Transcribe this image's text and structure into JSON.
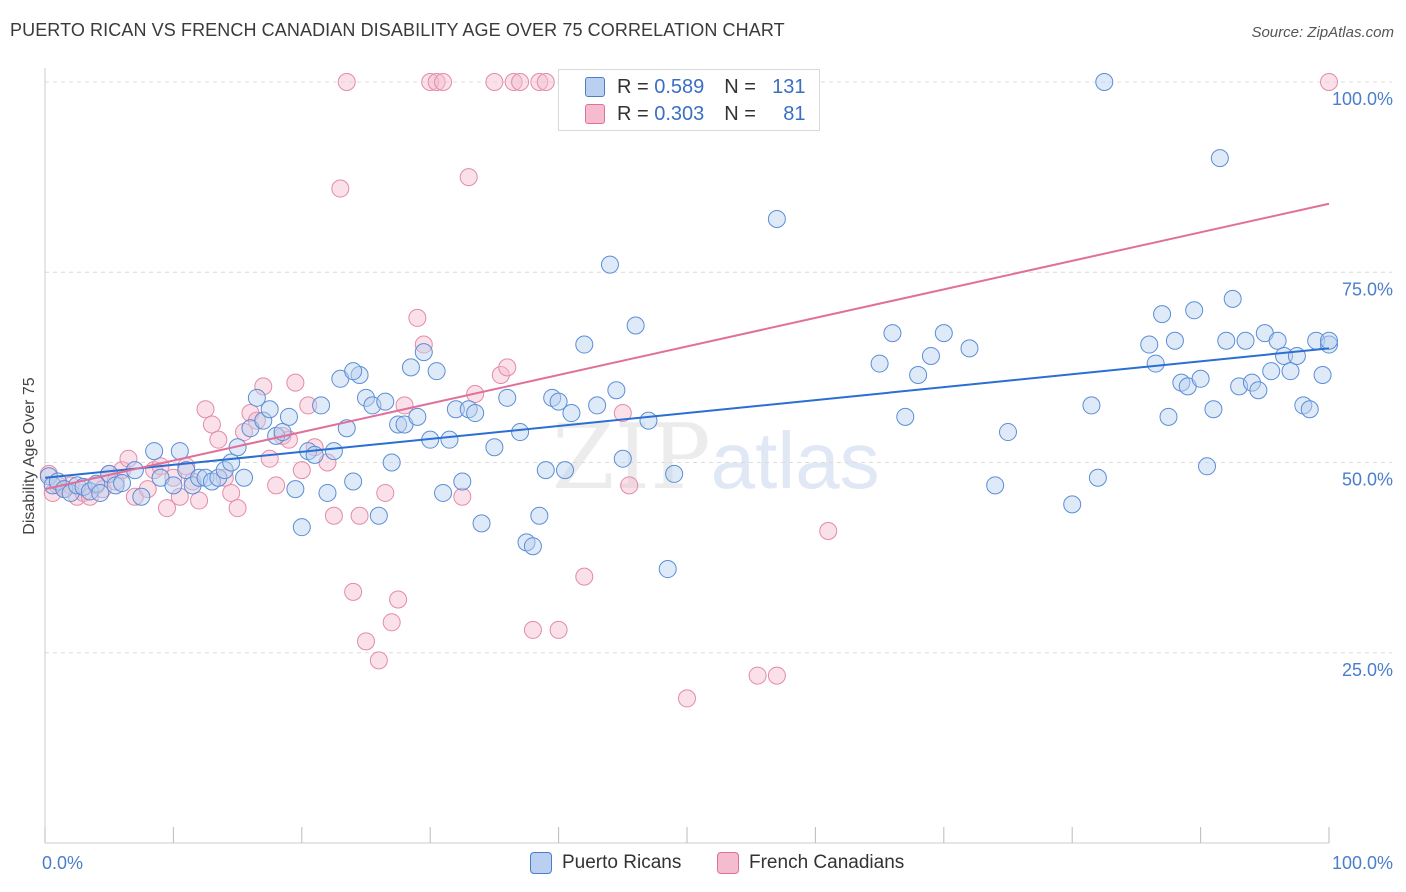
{
  "title": "PUERTO RICAN VS FRENCH CANADIAN DISABILITY AGE OVER 75 CORRELATION CHART",
  "source": "Source: ZipAtlas.com",
  "watermark": {
    "zip": "ZIP",
    "atlas": "atlas"
  },
  "legend": {
    "rows": [
      {
        "r_label": "R =",
        "r_value": "0.589",
        "n_label": "N =",
        "n_value": "131"
      },
      {
        "r_label": "R =",
        "r_value": "0.303",
        "n_label": "N =",
        "n_value": "81"
      }
    ]
  },
  "bottom_legend": [
    "Puerto Ricans",
    "French Canadians"
  ],
  "chart_data": {
    "type": "scatter",
    "title": "PUERTO RICAN VS FRENCH CANADIAN DISABILITY AGE OVER 75 CORRELATION CHART",
    "xlabel": "",
    "ylabel": "Disability Age Over 75",
    "xlim": [
      0,
      100
    ],
    "ylim": [
      0,
      105
    ],
    "x_tick_labels": [
      "0.0%",
      "100.0%"
    ],
    "y_tick_labels": [
      "25.0%",
      "50.0%",
      "75.0%",
      "100.0%"
    ],
    "y_ticks": [
      25,
      50,
      75,
      100
    ],
    "grid": true,
    "colors": {
      "blue": "#4a7ecb",
      "blue_fill": "#b9d0f0",
      "pink": "#e0709a",
      "pink_fill": "#f5bccf"
    },
    "series": [
      {
        "name": "Puerto Ricans",
        "r": 0.589,
        "n": 131,
        "trend": {
          "x": [
            0,
            100
          ],
          "y": [
            48.0,
            65.0
          ]
        },
        "points": [
          [
            0.3,
            48.2
          ],
          [
            0.6,
            47.0
          ],
          [
            1.0,
            47.5
          ],
          [
            1.5,
            46.5
          ],
          [
            2.0,
            46.0
          ],
          [
            2.5,
            47.0
          ],
          [
            3.0,
            46.8
          ],
          [
            3.5,
            46.2
          ],
          [
            4.0,
            47.2
          ],
          [
            4.3,
            46.0
          ],
          [
            5.0,
            48.5
          ],
          [
            5.5,
            47.0
          ],
          [
            6.0,
            47.3
          ],
          [
            7.0,
            49.0
          ],
          [
            7.5,
            45.5
          ],
          [
            8.5,
            51.5
          ],
          [
            9.0,
            48.0
          ],
          [
            10.0,
            47.0
          ],
          [
            10.5,
            51.5
          ],
          [
            11.0,
            49.0
          ],
          [
            11.5,
            47.0
          ],
          [
            12.0,
            48.0
          ],
          [
            12.5,
            48.0
          ],
          [
            13.0,
            47.5
          ],
          [
            13.5,
            48.0
          ],
          [
            14.0,
            49.0
          ],
          [
            14.5,
            50.0
          ],
          [
            15.0,
            52.0
          ],
          [
            15.5,
            48.0
          ],
          [
            16.0,
            54.5
          ],
          [
            16.5,
            58.5
          ],
          [
            17.0,
            55.5
          ],
          [
            17.5,
            57.0
          ],
          [
            18.0,
            53.5
          ],
          [
            18.5,
            54.0
          ],
          [
            19.0,
            56.0
          ],
          [
            19.5,
            46.5
          ],
          [
            20.0,
            41.5
          ],
          [
            20.5,
            51.5
          ],
          [
            21.0,
            51.0
          ],
          [
            21.5,
            57.5
          ],
          [
            22.0,
            46.0
          ],
          [
            22.5,
            51.5
          ],
          [
            23.0,
            61.0
          ],
          [
            23.5,
            54.5
          ],
          [
            24.0,
            47.5
          ],
          [
            24.5,
            61.5
          ],
          [
            25.0,
            58.5
          ],
          [
            25.5,
            57.5
          ],
          [
            26.0,
            43.0
          ],
          [
            27.0,
            50.0
          ],
          [
            27.5,
            55.0
          ],
          [
            28.0,
            55.0
          ],
          [
            28.5,
            62.5
          ],
          [
            29.0,
            56.0
          ],
          [
            29.5,
            64.5
          ],
          [
            30.0,
            53.0
          ],
          [
            30.5,
            62.0
          ],
          [
            31.0,
            46.0
          ],
          [
            31.5,
            53.0
          ],
          [
            32.0,
            57.0
          ],
          [
            32.5,
            47.5
          ],
          [
            33.0,
            57.0
          ],
          [
            33.5,
            56.5
          ],
          [
            34.0,
            42.0
          ],
          [
            35.0,
            52.0
          ],
          [
            36.0,
            58.5
          ],
          [
            37.0,
            54.0
          ],
          [
            37.5,
            39.5
          ],
          [
            38.0,
            39.0
          ],
          [
            38.5,
            43.0
          ],
          [
            39.0,
            49.0
          ],
          [
            39.5,
            58.5
          ],
          [
            40.0,
            58.0
          ],
          [
            40.5,
            49.0
          ],
          [
            41.0,
            56.5
          ],
          [
            42.0,
            65.5
          ],
          [
            43.0,
            57.5
          ],
          [
            44.0,
            76.0
          ],
          [
            44.5,
            59.5
          ],
          [
            45.0,
            50.5
          ],
          [
            46.0,
            68.0
          ],
          [
            47.0,
            55.5
          ],
          [
            48.5,
            36.0
          ],
          [
            49.0,
            48.5
          ],
          [
            57.0,
            82.0
          ],
          [
            65.0,
            63.0
          ],
          [
            66.0,
            67.0
          ],
          [
            67.0,
            56.0
          ],
          [
            68.0,
            61.5
          ],
          [
            69.0,
            64.0
          ],
          [
            70.0,
            67.0
          ],
          [
            72.0,
            65.0
          ],
          [
            74.0,
            47.0
          ],
          [
            75.0,
            54.0
          ],
          [
            80.0,
            44.5
          ],
          [
            81.5,
            57.5
          ],
          [
            82.0,
            48.0
          ],
          [
            82.5,
            100.0
          ],
          [
            86.0,
            65.5
          ],
          [
            86.5,
            63.0
          ],
          [
            87.0,
            69.5
          ],
          [
            87.5,
            56.0
          ],
          [
            88.0,
            66.0
          ],
          [
            88.5,
            60.5
          ],
          [
            89.0,
            60.0
          ],
          [
            89.5,
            70.0
          ],
          [
            90.0,
            61.0
          ],
          [
            90.5,
            49.5
          ],
          [
            91.0,
            57.0
          ],
          [
            91.5,
            90.0
          ],
          [
            92.0,
            66.0
          ],
          [
            92.5,
            71.5
          ],
          [
            93.0,
            60.0
          ],
          [
            93.5,
            66.0
          ],
          [
            94.0,
            60.5
          ],
          [
            94.5,
            59.5
          ],
          [
            95.0,
            67.0
          ],
          [
            95.5,
            62.0
          ],
          [
            96.0,
            66.0
          ],
          [
            96.5,
            64.0
          ],
          [
            97.0,
            62.0
          ],
          [
            97.5,
            64.0
          ],
          [
            98.0,
            57.5
          ],
          [
            98.5,
            57.0
          ],
          [
            99.0,
            66.0
          ],
          [
            99.5,
            61.5
          ],
          [
            100.0,
            65.5
          ],
          [
            100.0,
            66.0
          ],
          [
            24.0,
            62.0
          ],
          [
            26.5,
            58.0
          ]
        ]
      },
      {
        "name": "French Canadians",
        "r": 0.303,
        "n": 81,
        "trend": {
          "x": [
            0,
            100
          ],
          "y": [
            46.5,
            84.0
          ]
        },
        "points": [
          [
            0.3,
            48.5
          ],
          [
            0.6,
            46.0
          ],
          [
            1.0,
            47.0
          ],
          [
            1.5,
            46.5
          ],
          [
            2.0,
            47.0
          ],
          [
            2.5,
            45.5
          ],
          [
            3.0,
            46.0
          ],
          [
            3.5,
            45.5
          ],
          [
            4.0,
            47.0
          ],
          [
            4.5,
            46.5
          ],
          [
            5.0,
            48.5
          ],
          [
            5.5,
            47.5
          ],
          [
            6.0,
            49.0
          ],
          [
            6.5,
            50.5
          ],
          [
            7.0,
            45.5
          ],
          [
            8.0,
            46.5
          ],
          [
            8.5,
            49.0
          ],
          [
            9.0,
            49.5
          ],
          [
            9.5,
            44.0
          ],
          [
            10.0,
            48.0
          ],
          [
            10.5,
            45.5
          ],
          [
            11.0,
            49.5
          ],
          [
            11.5,
            47.5
          ],
          [
            12.0,
            45.0
          ],
          [
            12.5,
            57.0
          ],
          [
            13.0,
            55.0
          ],
          [
            13.5,
            53.0
          ],
          [
            14.0,
            48.0
          ],
          [
            14.5,
            46.0
          ],
          [
            15.0,
            44.0
          ],
          [
            15.5,
            54.0
          ],
          [
            16.0,
            56.5
          ],
          [
            16.5,
            55.5
          ],
          [
            17.0,
            60.0
          ],
          [
            17.5,
            50.5
          ],
          [
            18.0,
            47.0
          ],
          [
            18.5,
            53.5
          ],
          [
            19.0,
            53.0
          ],
          [
            19.5,
            60.5
          ],
          [
            20.0,
            49.0
          ],
          [
            20.5,
            57.5
          ],
          [
            21.0,
            52.0
          ],
          [
            22.0,
            50.0
          ],
          [
            22.5,
            43.0
          ],
          [
            23.0,
            86.0
          ],
          [
            23.5,
            100.0
          ],
          [
            24.0,
            33.0
          ],
          [
            25.0,
            26.5
          ],
          [
            26.0,
            24.0
          ],
          [
            26.5,
            46.0
          ],
          [
            27.0,
            29.0
          ],
          [
            27.5,
            32.0
          ],
          [
            28.0,
            57.5
          ],
          [
            29.0,
            69.0
          ],
          [
            29.5,
            65.5
          ],
          [
            30.0,
            100.0
          ],
          [
            30.5,
            100.0
          ],
          [
            31.0,
            100.0
          ],
          [
            32.5,
            45.5
          ],
          [
            33.0,
            87.5
          ],
          [
            33.5,
            59.0
          ],
          [
            35.0,
            100.0
          ],
          [
            35.5,
            61.5
          ],
          [
            36.0,
            62.5
          ],
          [
            36.5,
            100.0
          ],
          [
            37.0,
            100.0
          ],
          [
            38.0,
            28.0
          ],
          [
            38.5,
            100.0
          ],
          [
            39.0,
            100.0
          ],
          [
            40.0,
            28.0
          ],
          [
            41.0,
            100.0
          ],
          [
            42.0,
            35.0
          ],
          [
            45.0,
            56.5
          ],
          [
            45.5,
            47.0
          ],
          [
            50.0,
            19.0
          ],
          [
            52.0,
            100.0
          ],
          [
            55.5,
            22.0
          ],
          [
            57.0,
            22.0
          ],
          [
            61.0,
            41.0
          ],
          [
            100.0,
            100.0
          ],
          [
            24.5,
            43.0
          ]
        ]
      }
    ]
  }
}
